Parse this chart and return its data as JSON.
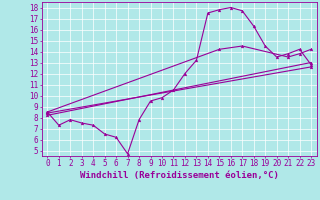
{
  "xlabel": "Windchill (Refroidissement éolien,°C)",
  "bg_color": "#b0e8e8",
  "line_color": "#990099",
  "xlim": [
    -0.5,
    23.5
  ],
  "ylim": [
    4.5,
    18.5
  ],
  "xticks": [
    0,
    1,
    2,
    3,
    4,
    5,
    6,
    7,
    8,
    9,
    10,
    11,
    12,
    13,
    14,
    15,
    16,
    17,
    18,
    19,
    20,
    21,
    22,
    23
  ],
  "yticks": [
    5,
    6,
    7,
    8,
    9,
    10,
    11,
    12,
    13,
    14,
    15,
    16,
    17,
    18
  ],
  "line1_x": [
    0,
    1,
    2,
    3,
    4,
    5,
    6,
    7,
    8,
    9,
    10,
    11,
    12,
    13,
    14,
    15,
    16,
    17,
    18,
    19,
    20,
    21,
    22,
    23
  ],
  "line1_y": [
    8.5,
    7.3,
    7.8,
    7.5,
    7.3,
    6.5,
    6.2,
    4.7,
    7.8,
    9.5,
    9.8,
    10.5,
    12.0,
    13.2,
    17.5,
    17.8,
    18.0,
    17.7,
    16.3,
    14.5,
    13.5,
    13.8,
    14.2,
    12.8
  ],
  "line2_x": [
    0,
    23
  ],
  "line2_y": [
    8.2,
    13.0
  ],
  "line3_x": [
    0,
    23
  ],
  "line3_y": [
    8.4,
    12.6
  ],
  "line4_x": [
    0,
    15,
    17,
    21,
    22,
    23
  ],
  "line4_y": [
    8.5,
    14.2,
    14.5,
    13.5,
    13.8,
    14.2
  ],
  "grid_color": "#ffffff",
  "xlabel_fontsize": 6.5,
  "tick_fontsize": 5.5,
  "figsize": [
    3.2,
    2.0
  ],
  "dpi": 100
}
